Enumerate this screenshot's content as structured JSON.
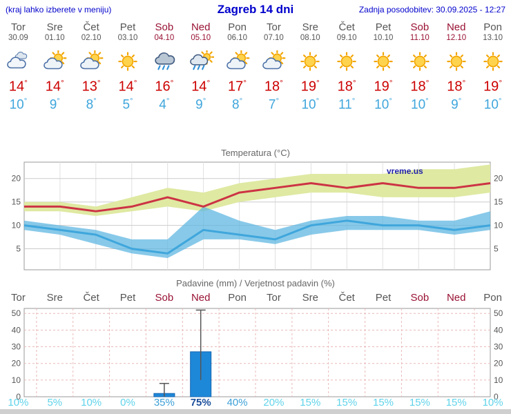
{
  "header": {
    "menu_note": "(kraj lahko izberete v meniju)",
    "title": "Zagreb 14 dni",
    "last_update": "Zadnja posodobitev: 30.09.2025 - 12:27"
  },
  "units": {
    "degree": "°"
  },
  "colors": {
    "header_blue": "#0000cc",
    "weekday_gray": "#555555",
    "weekend_red": "#991133",
    "tmax_red": "#cc0000",
    "tmin_blue": "#3fa6dc",
    "band_yellow": "#dfe9a2",
    "band_blue": "#5ab4e0",
    "line_red": "#cc3344",
    "line_blue": "#3fa6dc",
    "bar_blue": "#1e88d8",
    "grid_gray": "#cccccc",
    "grid_pink": "#eab8b8",
    "prob_light": "#5fd3ea",
    "prob_mid": "#3da0d8",
    "prob_dark": "#1c4f9b"
  },
  "forecast": {
    "days": [
      {
        "name": "Tor",
        "date": "30.09",
        "weekend": false,
        "icon": "cloudy",
        "tmax": 14,
        "tmin": 10
      },
      {
        "name": "Sre",
        "date": "01.10",
        "weekend": false,
        "icon": "partly-cloudy",
        "tmax": 14,
        "tmin": 9
      },
      {
        "name": "Čet",
        "date": "02.10",
        "weekend": false,
        "icon": "partly-cloudy",
        "tmax": 13,
        "tmin": 8
      },
      {
        "name": "Pet",
        "date": "03.10",
        "weekend": false,
        "icon": "sunny",
        "tmax": 14,
        "tmin": 5
      },
      {
        "name": "Sob",
        "date": "04.10",
        "weekend": true,
        "icon": "rain",
        "tmax": 16,
        "tmin": 4
      },
      {
        "name": "Ned",
        "date": "05.10",
        "weekend": true,
        "icon": "sun-rain",
        "tmax": 14,
        "tmin": 9
      },
      {
        "name": "Pon",
        "date": "06.10",
        "weekend": false,
        "icon": "partly-cloudy",
        "tmax": 17,
        "tmin": 8
      },
      {
        "name": "Tor",
        "date": "07.10",
        "weekend": false,
        "icon": "partly-cloudy",
        "tmax": 18,
        "tmin": 7
      },
      {
        "name": "Sre",
        "date": "08.10",
        "weekend": false,
        "icon": "sunny",
        "tmax": 19,
        "tmin": 10
      },
      {
        "name": "Čet",
        "date": "09.10",
        "weekend": false,
        "icon": "sunny",
        "tmax": 18,
        "tmin": 11
      },
      {
        "name": "Pet",
        "date": "10.10",
        "weekend": false,
        "icon": "sunny",
        "tmax": 19,
        "tmin": 10
      },
      {
        "name": "Sob",
        "date": "11.10",
        "weekend": true,
        "icon": "sunny",
        "tmax": 18,
        "tmin": 10
      },
      {
        "name": "Ned",
        "date": "12.10",
        "weekend": true,
        "icon": "sunny",
        "tmax": 18,
        "tmin": 9
      },
      {
        "name": "Pon",
        "date": "13.10",
        "weekend": false,
        "icon": "sunny",
        "tmax": 19,
        "tmin": 10
      }
    ]
  },
  "chart_data": [
    {
      "type": "line",
      "title": "Temperatura (°C)",
      "watermark": "vreme.us",
      "categories": [
        "Tor 30.09",
        "Sre 01.10",
        "Čet 02.10",
        "Pet 03.10",
        "Sob 04.10",
        "Ned 05.10",
        "Pon 06.10",
        "Tor 07.10",
        "Sre 08.10",
        "Čet 09.10",
        "Pet 10.10",
        "Sob 11.10",
        "Ned 12.10",
        "Pon 13.10"
      ],
      "ylim": [
        0.5,
        23.5
      ],
      "yticks": [
        5,
        10,
        15,
        20
      ],
      "series": [
        {
          "name": "tmax",
          "color": "#cc3344",
          "values": [
            14,
            14,
            13,
            14,
            16,
            14,
            17,
            18,
            19,
            18,
            19,
            18,
            18,
            19
          ]
        },
        {
          "name": "tmin",
          "color": "#3fa6dc",
          "values": [
            10,
            9,
            8,
            5,
            4,
            9,
            8,
            7,
            10,
            11,
            10,
            10,
            9,
            10
          ]
        },
        {
          "name": "tmax_range_upper",
          "values": [
            15,
            15,
            14,
            16,
            18,
            17,
            19,
            20,
            21,
            21,
            21,
            22,
            22,
            23
          ]
        },
        {
          "name": "tmax_range_lower",
          "values": [
            13,
            13,
            12,
            13,
            14,
            13,
            15,
            16,
            17,
            17,
            16,
            16,
            16,
            17
          ]
        },
        {
          "name": "tmin_range_upper",
          "values": [
            11,
            10,
            9,
            7,
            7,
            14,
            11,
            9,
            11,
            12,
            12,
            11,
            11,
            13
          ]
        },
        {
          "name": "tmin_range_lower",
          "values": [
            9,
            8,
            6,
            4,
            3,
            7,
            7,
            6,
            8,
            9,
            9,
            9,
            8,
            9
          ]
        }
      ]
    },
    {
      "type": "bar",
      "title": "Padavine (mm) / Verjetnost padavin (%)",
      "categories": [
        "Tor",
        "Sre",
        "Čet",
        "Pet",
        "Sob",
        "Ned",
        "Pon",
        "Tor",
        "Sre",
        "Čet",
        "Pet",
        "Sob",
        "Ned",
        "Pon"
      ],
      "weekend_flags": [
        false,
        false,
        false,
        false,
        true,
        true,
        false,
        false,
        false,
        false,
        false,
        true,
        true,
        false
      ],
      "values": [
        0,
        0,
        0,
        0,
        2,
        27,
        0,
        0,
        0,
        0,
        0,
        0,
        0,
        0
      ],
      "whisker_low": [
        0,
        0,
        0,
        0,
        0,
        10,
        0,
        0,
        0,
        0,
        0,
        0,
        0,
        0
      ],
      "whisker_high": [
        0,
        0,
        0,
        0,
        8,
        52,
        0,
        0,
        0,
        0,
        0,
        0,
        0,
        0
      ],
      "probabilities": [
        "10%",
        "5%",
        "10%",
        "0%",
        "35%",
        "75%",
        "40%",
        "20%",
        "15%",
        "15%",
        "15%",
        "15%",
        "15%",
        "10%"
      ],
      "prob_levels": [
        "light",
        "light",
        "light",
        "light",
        "mid",
        "dark",
        "mid",
        "light",
        "light",
        "light",
        "light",
        "light",
        "light",
        "light"
      ],
      "ylim": [
        0,
        53
      ],
      "yticks": [
        0,
        10,
        20,
        30,
        40,
        50
      ]
    }
  ]
}
